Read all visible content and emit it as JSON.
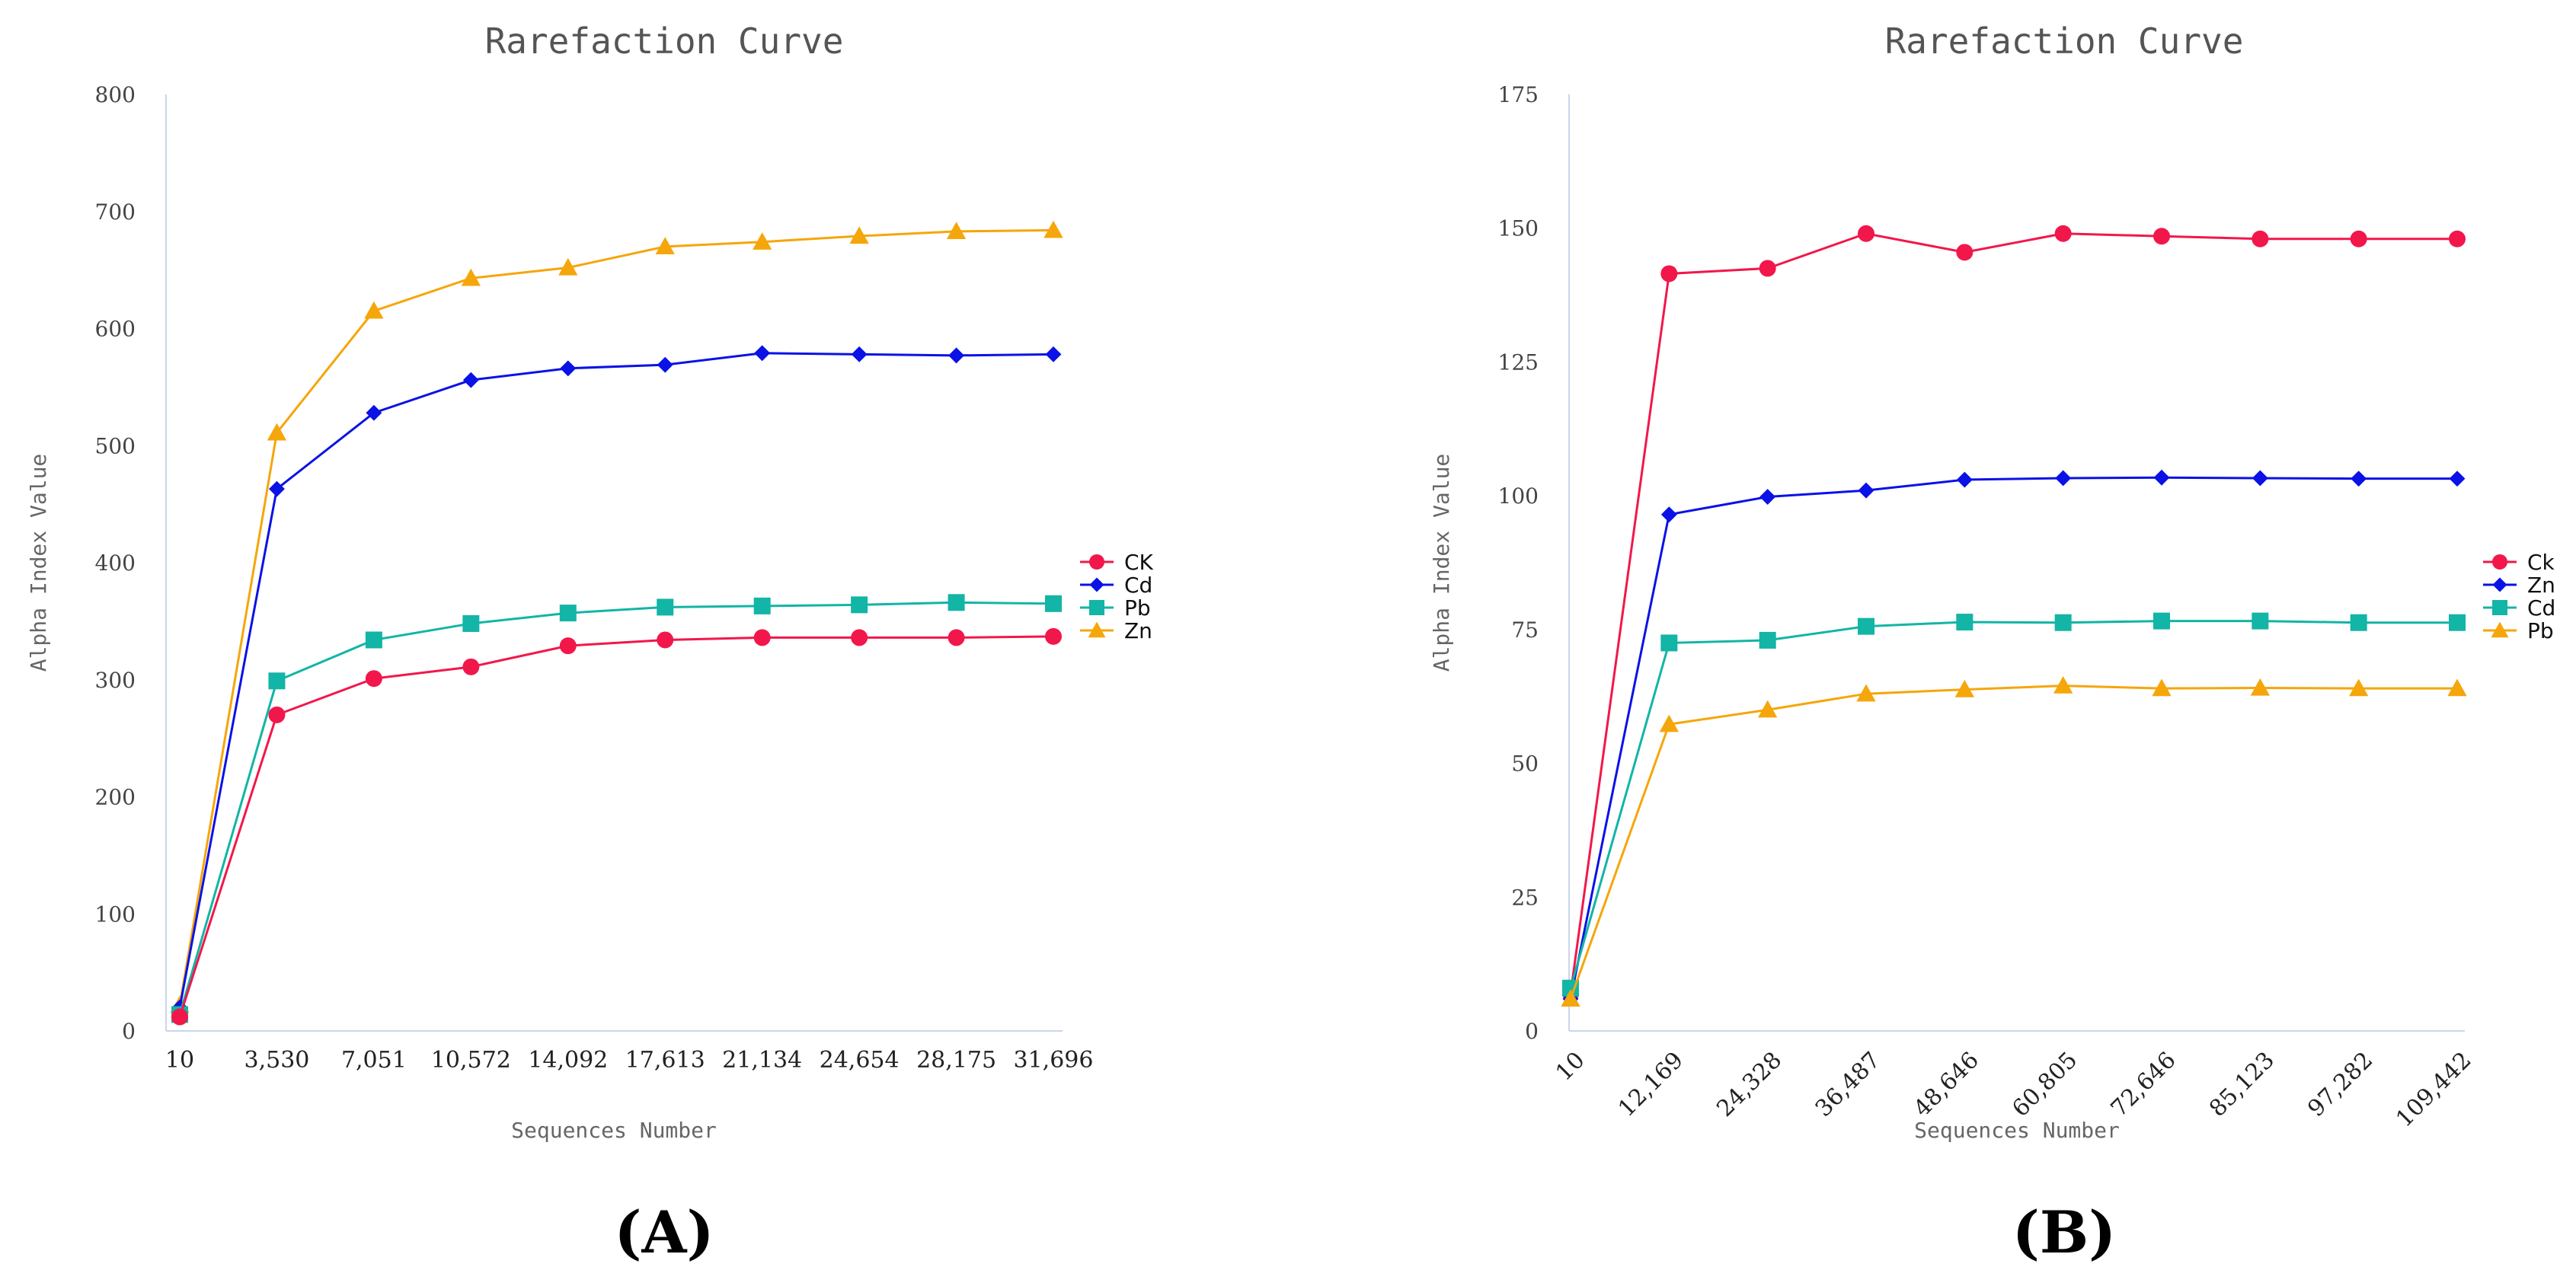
{
  "chart_data": [
    {
      "type": "line",
      "title": "Rarefaction Curve",
      "xlabel": "Sequences Number",
      "ylabel": "Alpha Index Value",
      "panel_label": "(A)",
      "categories": [
        "10",
        "3,530",
        "7,051",
        "10,572",
        "14,092",
        "17,613",
        "21,134",
        "24,654",
        "28,175",
        "31,696"
      ],
      "ylim": [
        0,
        800
      ],
      "yticks": [
        0,
        100,
        200,
        300,
        400,
        500,
        600,
        700,
        800
      ],
      "x_rotated": false,
      "legend_position": "right",
      "legend_order": [
        "CK",
        "Cd",
        "Pb",
        "Zn"
      ],
      "series": [
        {
          "name": "Zn",
          "color": "#f5a60a",
          "marker": "triangle",
          "values": [
            22,
            511,
            615,
            643,
            652,
            670,
            674,
            679,
            683,
            684
          ]
        },
        {
          "name": "Cd",
          "color": "#0a12e6",
          "marker": "diamond",
          "values": [
            20,
            463,
            528,
            556,
            566,
            569,
            579,
            578,
            577,
            578
          ]
        },
        {
          "name": "Pb",
          "color": "#12b5a6",
          "marker": "square",
          "values": [
            14,
            299,
            334,
            348,
            357,
            362,
            363,
            364,
            366,
            365
          ]
        },
        {
          "name": "CK",
          "color": "#f2174a",
          "marker": "circle",
          "values": [
            12,
            270,
            301,
            311,
            329,
            334,
            336,
            336,
            336,
            337
          ]
        }
      ]
    },
    {
      "type": "line",
      "title": "Rarefaction Curve",
      "xlabel": "Sequences Number",
      "ylabel": "Alpha Index Value",
      "panel_label": "(B)",
      "categories": [
        "10",
        "12,169",
        "24,328",
        "36,487",
        "48,646",
        "60,805",
        "72,646",
        "85,123",
        "97,282",
        "109,442"
      ],
      "ylim": [
        0,
        175
      ],
      "yticks": [
        0,
        25,
        50,
        75,
        100,
        125,
        150,
        175
      ],
      "x_rotated": true,
      "legend_position": "right",
      "legend_order": [
        "Ck",
        "Zn",
        "Cd",
        "Pb"
      ],
      "series": [
        {
          "name": "Ck",
          "color": "#f2174a",
          "marker": "circle",
          "values": [
            7,
            141.5,
            142.5,
            149,
            145.5,
            149,
            148.5,
            148,
            148,
            148
          ]
        },
        {
          "name": "Zn",
          "color": "#0a12e6",
          "marker": "diamond",
          "values": [
            6,
            96.5,
            99.8,
            101,
            103,
            103.3,
            103.4,
            103.3,
            103.2,
            103.2
          ]
        },
        {
          "name": "Cd",
          "color": "#12b5a6",
          "marker": "square",
          "values": [
            8,
            72.5,
            73,
            75.6,
            76.4,
            76.3,
            76.6,
            76.6,
            76.3,
            76.3
          ]
        },
        {
          "name": "Pb",
          "color": "#f5a60a",
          "marker": "triangle",
          "values": [
            6,
            57.3,
            60,
            63,
            63.8,
            64.5,
            64,
            64.1,
            64,
            64
          ]
        }
      ]
    }
  ]
}
